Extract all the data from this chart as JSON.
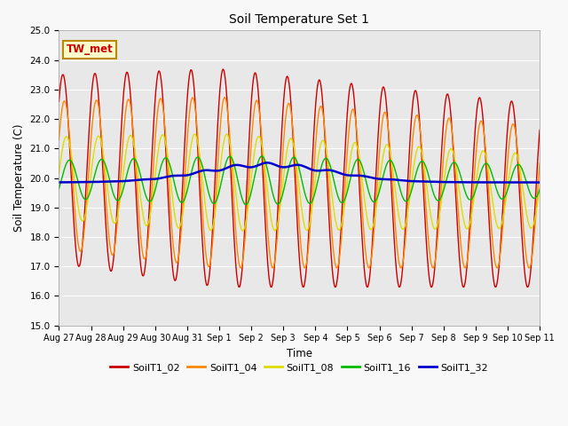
{
  "title": "Soil Temperature Set 1",
  "xlabel": "Time",
  "ylabel": "Soil Temperature (C)",
  "ylim": [
    15.0,
    25.0
  ],
  "yticks": [
    15.0,
    16.0,
    17.0,
    18.0,
    19.0,
    20.0,
    21.0,
    22.0,
    23.0,
    24.0,
    25.0
  ],
  "xtick_labels": [
    "Aug 27",
    "Aug 28",
    "Aug 29",
    "Aug 30",
    "Aug 31",
    "Sep 1",
    "Sep 2",
    "Sep 3",
    "Sep 4",
    "Sep 5",
    "Sep 6",
    "Sep 7",
    "Sep 8",
    "Sep 9",
    "Sep 10",
    "Sep 11"
  ],
  "series": [
    {
      "label": "SoilT1_02",
      "color": "#cc0000"
    },
    {
      "label": "SoilT1_04",
      "color": "#ff8800"
    },
    {
      "label": "SoilT1_08",
      "color": "#dddd00"
    },
    {
      "label": "SoilT1_16",
      "color": "#00bb00"
    },
    {
      "label": "SoilT1_32",
      "color": "#0000cc"
    }
  ],
  "annotation_text": "TW_met",
  "annotation_box_color": "#ffffcc",
  "annotation_border_color": "#bb8800",
  "annotation_text_color": "#cc0000",
  "plot_bg_color": "#e8e8e8",
  "fig_bg_color": "#f8f8f8",
  "grid_color": "#ffffff"
}
